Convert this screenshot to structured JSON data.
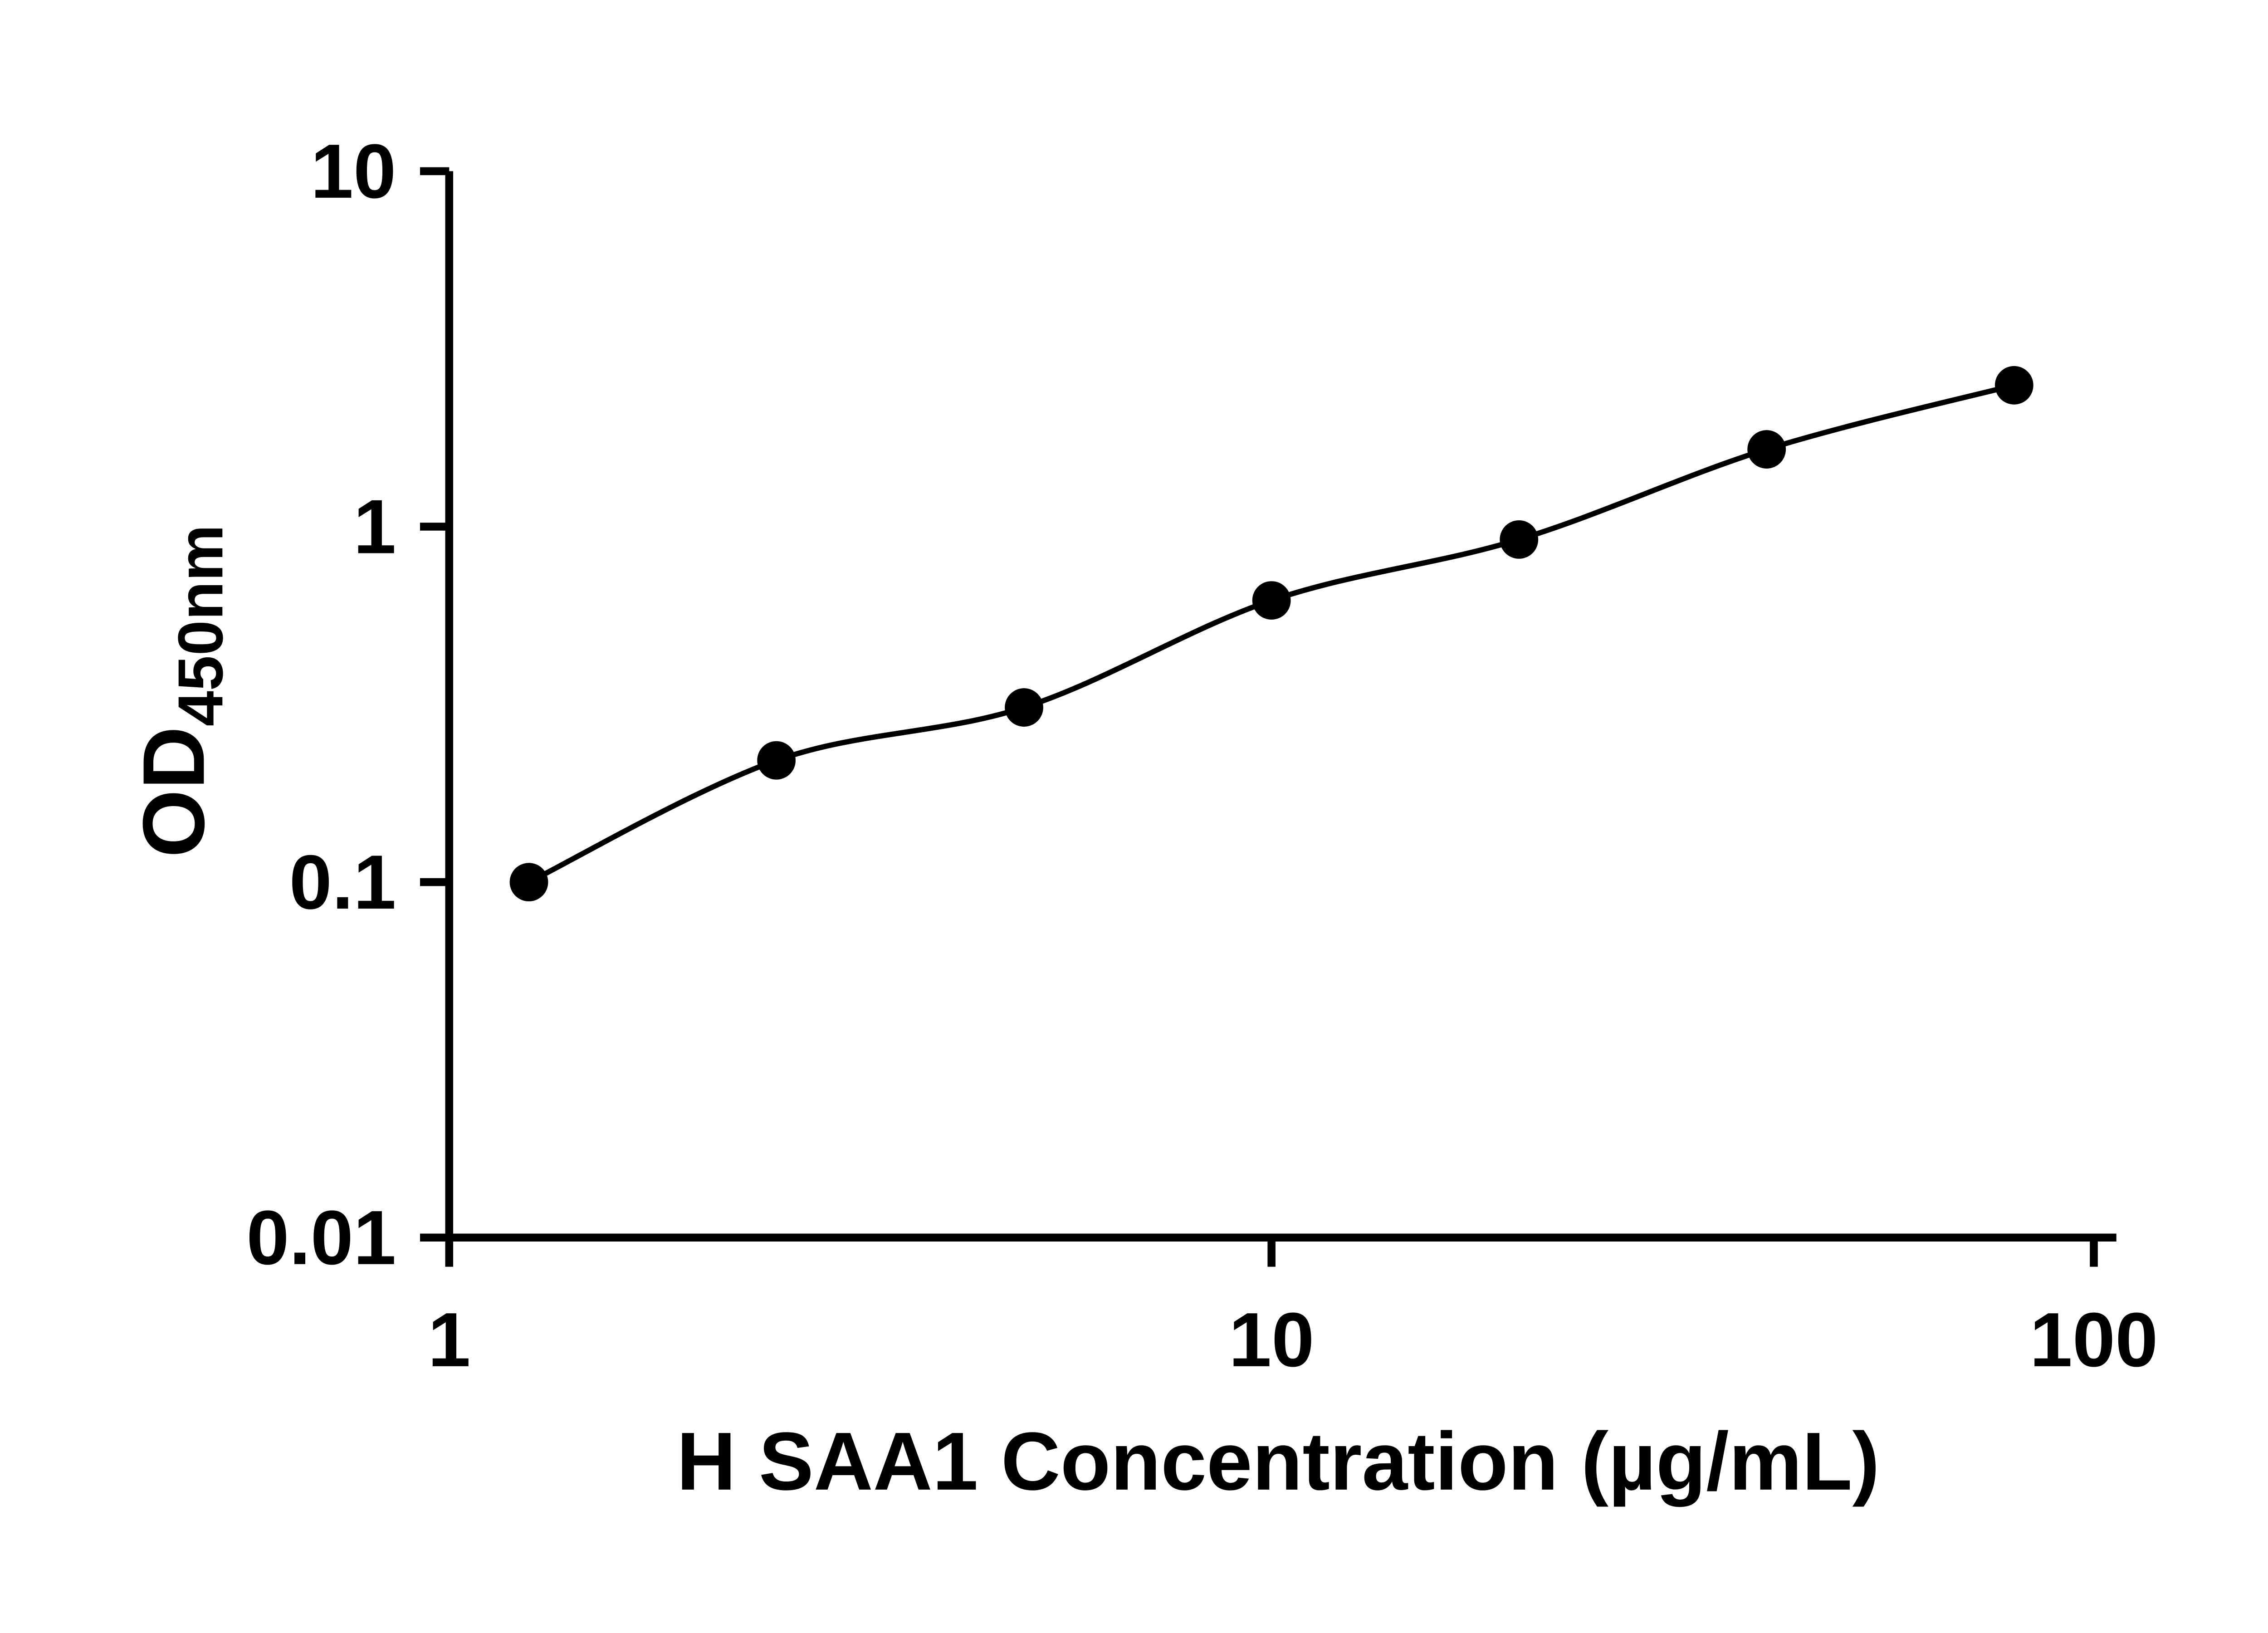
{
  "chart_data": {
    "type": "scatter",
    "subtype": "standard-curve-with-fit-line",
    "title": "",
    "xlabel": "H SAA1 Concentration (µg/mL)",
    "ylabel_main": "OD",
    "ylabel_sub": "450nm",
    "x": [
      1.25,
      2.5,
      5,
      10,
      20,
      40,
      80
    ],
    "y": [
      0.1,
      0.22,
      0.31,
      0.62,
      0.92,
      1.65,
      2.5
    ],
    "x_scale": "log",
    "y_scale": "log",
    "xlim": [
      1,
      100
    ],
    "ylim": [
      0.01,
      10
    ],
    "x_ticks": [
      1,
      10,
      100
    ],
    "y_ticks": [
      0.01,
      0.1,
      1,
      10
    ],
    "x_tick_labels": [
      "1",
      "10",
      "100"
    ],
    "y_tick_labels": [
      "0.01",
      "0.1",
      "1",
      "10"
    ],
    "grid": false,
    "legend": "none",
    "axis_color": "#000000",
    "line_color": "#000000",
    "marker_color": "#000000"
  }
}
